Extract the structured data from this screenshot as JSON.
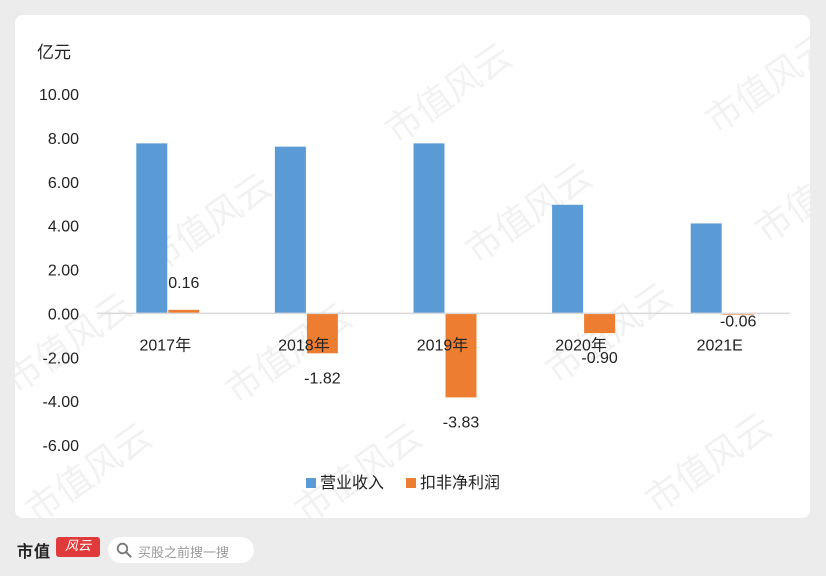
{
  "chart_data": {
    "type": "bar",
    "unit_label": "亿元",
    "categories": [
      "2017年",
      "2018年",
      "2019年",
      "2020年",
      "2021E"
    ],
    "series": [
      {
        "name": "营业收入",
        "color": "#5b9bd5",
        "values": [
          7.75,
          7.6,
          7.75,
          4.95,
          4.1
        ]
      },
      {
        "name": "扣非净利润",
        "color": "#ed7d31",
        "values": [
          0.16,
          -1.82,
          -3.83,
          -0.9,
          -0.06
        ]
      }
    ],
    "data_labels": {
      "series": "扣非净利润",
      "labels": [
        "0.16",
        "-1.82",
        "-3.83",
        "-0.90",
        "-0.06"
      ]
    },
    "y_ticks": [
      "10.00",
      "8.00",
      "6.00",
      "4.00",
      "2.00",
      "0.00",
      "-2.00",
      "-4.00",
      "-6.00"
    ],
    "ylim": [
      -6,
      10
    ],
    "grid": false,
    "legend_position": "bottom"
  },
  "watermark": "市值风云",
  "footer": {
    "brand": "市值",
    "logo_text": "风云",
    "search_placeholder": "买股之前搜一搜",
    "search_icon": "search-icon"
  }
}
